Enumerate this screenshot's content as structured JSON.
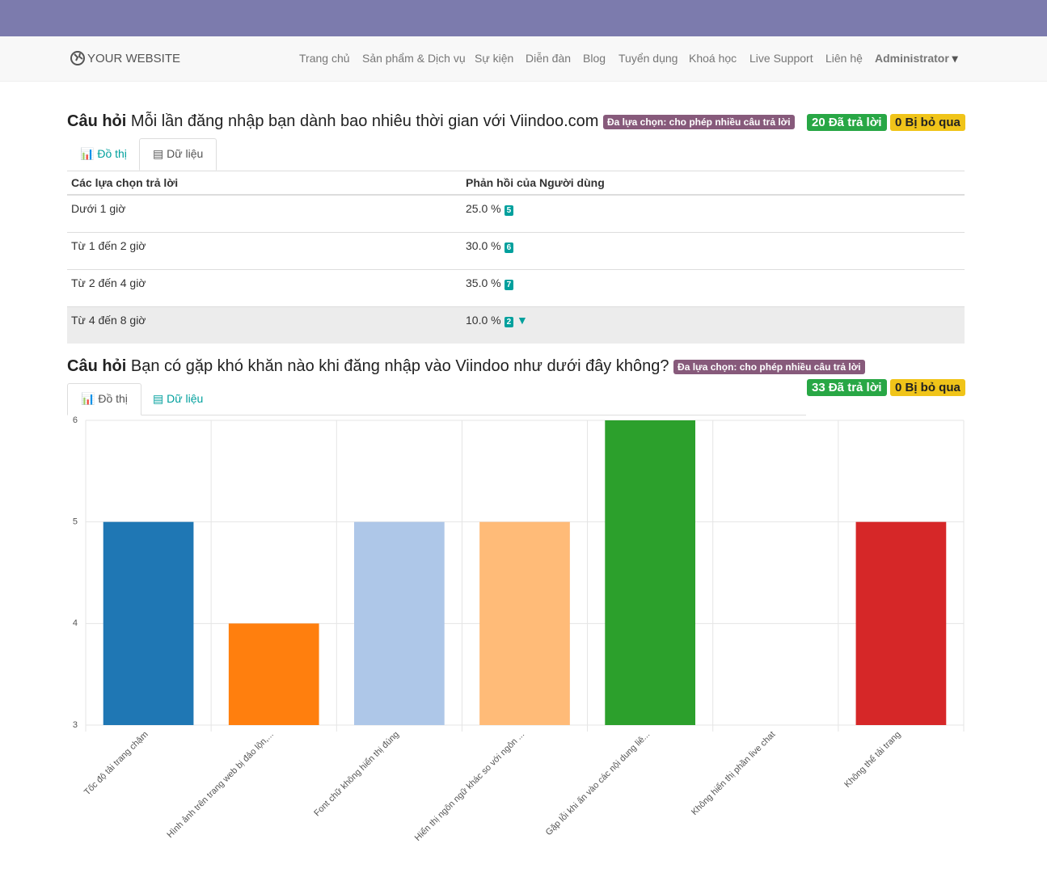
{
  "navbar": {
    "brand": "YOUR WEBSITE",
    "items": [
      "Trang chủ",
      "Sản phẩm & Dịch vụ",
      "Sự kiện",
      "Diễn đàn",
      "Blog",
      "Tuyển dụng",
      "Khoá học",
      "Live Support",
      "Liên hệ"
    ],
    "user": "Administrator"
  },
  "question1": {
    "label": "Câu hỏi",
    "text": "Mỗi lần đăng nhập bạn dành bao nhiêu thời gian với Viindoo.com",
    "type_badge": "Đa lựa chọn: cho phép nhiều câu trả lời",
    "answered": "20 Đã trả lời",
    "skipped": "0 Bị bỏ qua",
    "tabs": [
      "Đồ thị",
      "Dữ liệu"
    ],
    "table": {
      "header": [
        "Các lựa chọn trả lời",
        "Phản hồi của Người dùng"
      ],
      "rows": [
        [
          "Dưới 1 giờ",
          "25.0 %",
          5
        ],
        [
          "Từ 1 đến 2 giờ",
          "30.0 %",
          6
        ],
        [
          "Từ 2 đến 4 giờ",
          "35.0 %",
          7
        ],
        [
          "Từ 4 đến 8 giờ",
          "10.0 %",
          2
        ]
      ]
    }
  },
  "question2": {
    "label": "Câu hỏi",
    "text": "Bạn có gặp khó khăn nào khi đăng nhập vào Viindoo như dưới đây không?",
    "type_badge": "Đa lựa chọn: cho phép nhiều câu trả lời",
    "answered": "33 Đã trả lời",
    "skipped": "0 Bị bỏ qua",
    "tabs": [
      "Đồ thị",
      "Dữ liệu"
    ]
  },
  "chart_data": {
    "type": "bar",
    "categories": [
      "Tốc độ tải trang chậm",
      "Hình ảnh trên trang web bị đảo lộn,...",
      "Font chữ không hiển thị đúng",
      "Hiển thị ngôn ngữ khác so với ngôn ...",
      "Gặp lỗi khi ấn vào các nội dung liê...",
      "Không hiển thị phần live chat",
      "Không thể tải trang"
    ],
    "values": [
      5,
      4,
      5,
      5,
      6,
      3,
      5
    ],
    "colors": [
      "#1f77b4",
      "#ff7f0e",
      "#aec7e8",
      "#ffbb78",
      "#2ca02c",
      "#98df8a",
      "#d62728"
    ],
    "ylim": [
      3,
      6
    ],
    "yticks": [
      3,
      4,
      5,
      6
    ],
    "grid": true
  }
}
